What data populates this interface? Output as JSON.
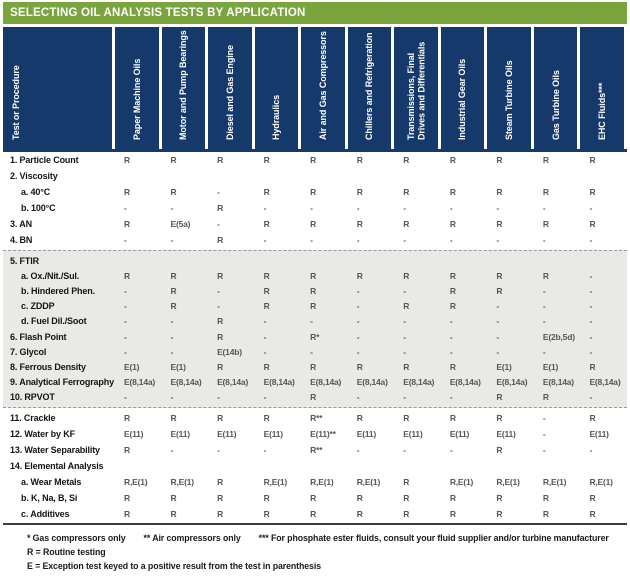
{
  "title": "SELECTING OIL ANALYSIS TESTS BY APPLICATION",
  "colors": {
    "green": "#7AA43D",
    "navy": "#16396B",
    "grayband": "#E9E9E6"
  },
  "table": {
    "columns": [
      "Test or Procedure",
      "Paper Machine Oils",
      "Motor and Pump Bearings",
      "Diesel and Gas Engine",
      "Hydraulics",
      "Air and Gas Compressors",
      "Chillers and Refrigeration",
      "Transmissions, Final\nDrives and Differentials",
      "Industrial Gear Oils",
      "Steam Turbine Oils",
      "Gas Turbine Oils",
      "EHC Fluids***"
    ],
    "sections": [
      {
        "shade": "white",
        "rows": [
          {
            "label": "1. Particle Count",
            "indent": 0,
            "values": [
              "R",
              "R",
              "R",
              "R",
              "R",
              "R",
              "R",
              "R",
              "R",
              "R",
              "R"
            ]
          },
          {
            "label": "2. Viscosity",
            "indent": 0,
            "values": [
              "",
              "",
              "",
              "",
              "",
              "",
              "",
              "",
              "",
              "",
              ""
            ]
          },
          {
            "label": "a. 40°C",
            "indent": 1,
            "values": [
              "R",
              "R",
              "-",
              "R",
              "R",
              "R",
              "R",
              "R",
              "R",
              "R",
              "R"
            ]
          },
          {
            "label": "b. 100°C",
            "indent": 1,
            "values": [
              "-",
              "-",
              "R",
              "-",
              "-",
              "-",
              "-",
              "-",
              "-",
              "-",
              "-"
            ]
          },
          {
            "label": "3. AN",
            "indent": 0,
            "values": [
              "R",
              "E(5a)",
              "-",
              "R",
              "R",
              "R",
              "R",
              "R",
              "R",
              "R",
              "R"
            ]
          },
          {
            "label": "4. BN",
            "indent": 0,
            "values": [
              "-",
              "-",
              "R",
              "-",
              "-",
              "-",
              "-",
              "-",
              "-",
              "-",
              "-"
            ]
          }
        ]
      },
      {
        "shade": "gray",
        "rows": [
          {
            "label": "5. FTIR",
            "indent": 0,
            "values": [
              "",
              "",
              "",
              "",
              "",
              "",
              "",
              "",
              "",
              "",
              ""
            ]
          },
          {
            "label": "a. Ox./Nit./Sul.",
            "indent": 1,
            "values": [
              "R",
              "R",
              "R",
              "R",
              "R",
              "R",
              "R",
              "R",
              "R",
              "R",
              "-"
            ]
          },
          {
            "label": "b. Hindered Phen.",
            "indent": 1,
            "values": [
              "-",
              "R",
              "-",
              "R",
              "R",
              "-",
              "-",
              "R",
              "R",
              "-",
              "-"
            ]
          },
          {
            "label": "c. ZDDP",
            "indent": 1,
            "values": [
              "-",
              "R",
              "-",
              "R",
              "R",
              "-",
              "R",
              "R",
              "-",
              "-",
              "-"
            ]
          },
          {
            "label": "d. Fuel Dil./Soot",
            "indent": 1,
            "values": [
              "-",
              "-",
              "R",
              "-",
              "-",
              "-",
              "-",
              "-",
              "-",
              "-",
              "-"
            ]
          },
          {
            "label": "6. Flash Point",
            "indent": 0,
            "values": [
              "-",
              "-",
              "R",
              "-",
              "R*",
              "-",
              "-",
              "-",
              "-",
              "E(2b,5d)",
              "-"
            ]
          },
          {
            "label": "7. Glycol",
            "indent": 0,
            "values": [
              "-",
              "-",
              "E(14b)",
              "-",
              "-",
              "-",
              "-",
              "-",
              "-",
              "-",
              "-"
            ]
          },
          {
            "label": "8. Ferrous Density",
            "indent": 0,
            "values": [
              "E(1)",
              "E(1)",
              "R",
              "R",
              "R",
              "R",
              "R",
              "R",
              "E(1)",
              "E(1)",
              "R"
            ]
          },
          {
            "label": "9. Analytical Ferrography",
            "indent": 0,
            "values": [
              "E(8,14a)",
              "E(8,14a)",
              "E(8,14a)",
              "E(8,14a)",
              "E(8,14a)",
              "E(8,14a)",
              "E(8,14a)",
              "E(8,14a)",
              "E(8,14a)",
              "E(8,14a)",
              "E(8,14a)"
            ]
          },
          {
            "label": "10. RPVOT",
            "indent": 0,
            "values": [
              "-",
              "-",
              "-",
              "-",
              "R",
              "-",
              "-",
              "-",
              "R",
              "R",
              "-"
            ]
          }
        ]
      },
      {
        "shade": "white",
        "rows": [
          {
            "label": "11. Crackle",
            "indent": 0,
            "values": [
              "R",
              "R",
              "R",
              "R",
              "R**",
              "R",
              "R",
              "R",
              "R",
              "-",
              "R"
            ]
          },
          {
            "label": "12. Water by KF",
            "indent": 0,
            "values": [
              "E(11)",
              "E(11)",
              "E(11)",
              "E(11)",
              "E(11)**",
              "E(11)",
              "E(11)",
              "E(11)",
              "E(11)",
              "-",
              "E(11)"
            ]
          },
          {
            "label": "13. Water Separability",
            "indent": 0,
            "values": [
              "R",
              "-",
              "-",
              "-",
              "R**",
              "-",
              "-",
              "-",
              "R",
              "-",
              "-"
            ]
          },
          {
            "label": "14. Elemental Analysis",
            "indent": 0,
            "values": [
              "",
              "",
              "",
              "",
              "",
              "",
              "",
              "",
              "",
              "",
              ""
            ]
          },
          {
            "label": "a. Wear Metals",
            "indent": 1,
            "values": [
              "R,E(1)",
              "R,E(1)",
              "R",
              "R,E(1)",
              "R,E(1)",
              "R,E(1)",
              "R",
              "R,E(1)",
              "R,E(1)",
              "R,E(1)",
              "R,E(1)"
            ]
          },
          {
            "label": "b. K, Na, B, Si",
            "indent": 1,
            "values": [
              "R",
              "R",
              "R",
              "R",
              "R",
              "R",
              "R",
              "R",
              "R",
              "R",
              "R"
            ]
          },
          {
            "label": "c. Additives",
            "indent": 1,
            "values": [
              "R",
              "R",
              "R",
              "R",
              "R",
              "R",
              "R",
              "R",
              "R",
              "R",
              "R"
            ]
          }
        ]
      }
    ]
  },
  "footnotes": [
    "* Gas compressors only",
    "** Air compressors only",
    "*** For phosphate ester fluids, consult your fluid supplier and/or turbine manufacturer"
  ],
  "legend": [
    "R = Routine testing",
    "E = Exception test keyed to a positive result from the test in parenthesis"
  ]
}
